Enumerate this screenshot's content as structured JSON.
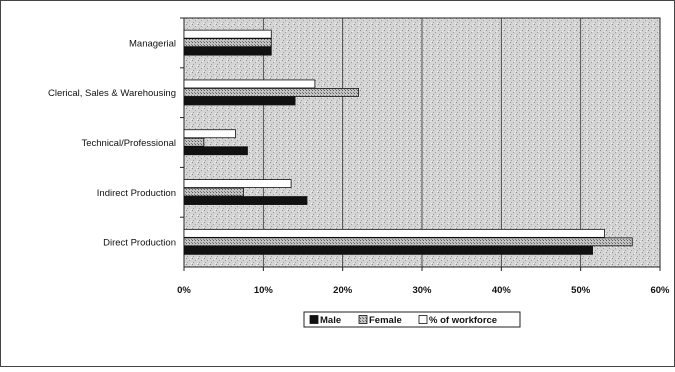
{
  "chart_data": {
    "type": "bar",
    "orientation": "horizontal",
    "categories": [
      "Managerial",
      "Clerical, Sales & Warehousing",
      "Technical/Professional",
      "Indirect Production",
      "Direct Production"
    ],
    "series": [
      {
        "name": "Male",
        "values": [
          11,
          14,
          8,
          15.5,
          51.5
        ],
        "color": "#111111"
      },
      {
        "name": "Female",
        "values": [
          11,
          22,
          2.5,
          7.5,
          56.5
        ],
        "color": "#a8a8a8"
      },
      {
        "name": "% of workforce",
        "values": [
          11,
          16.5,
          6.5,
          13.5,
          53
        ],
        "color": "#ffffff"
      }
    ],
    "x_ticks": [
      "0%",
      "10%",
      "20%",
      "30%",
      "40%",
      "50%",
      "60%"
    ],
    "xlim": [
      0,
      60
    ],
    "grid": true,
    "legend_position": "bottom",
    "plot_background": "#d6d6d6"
  }
}
